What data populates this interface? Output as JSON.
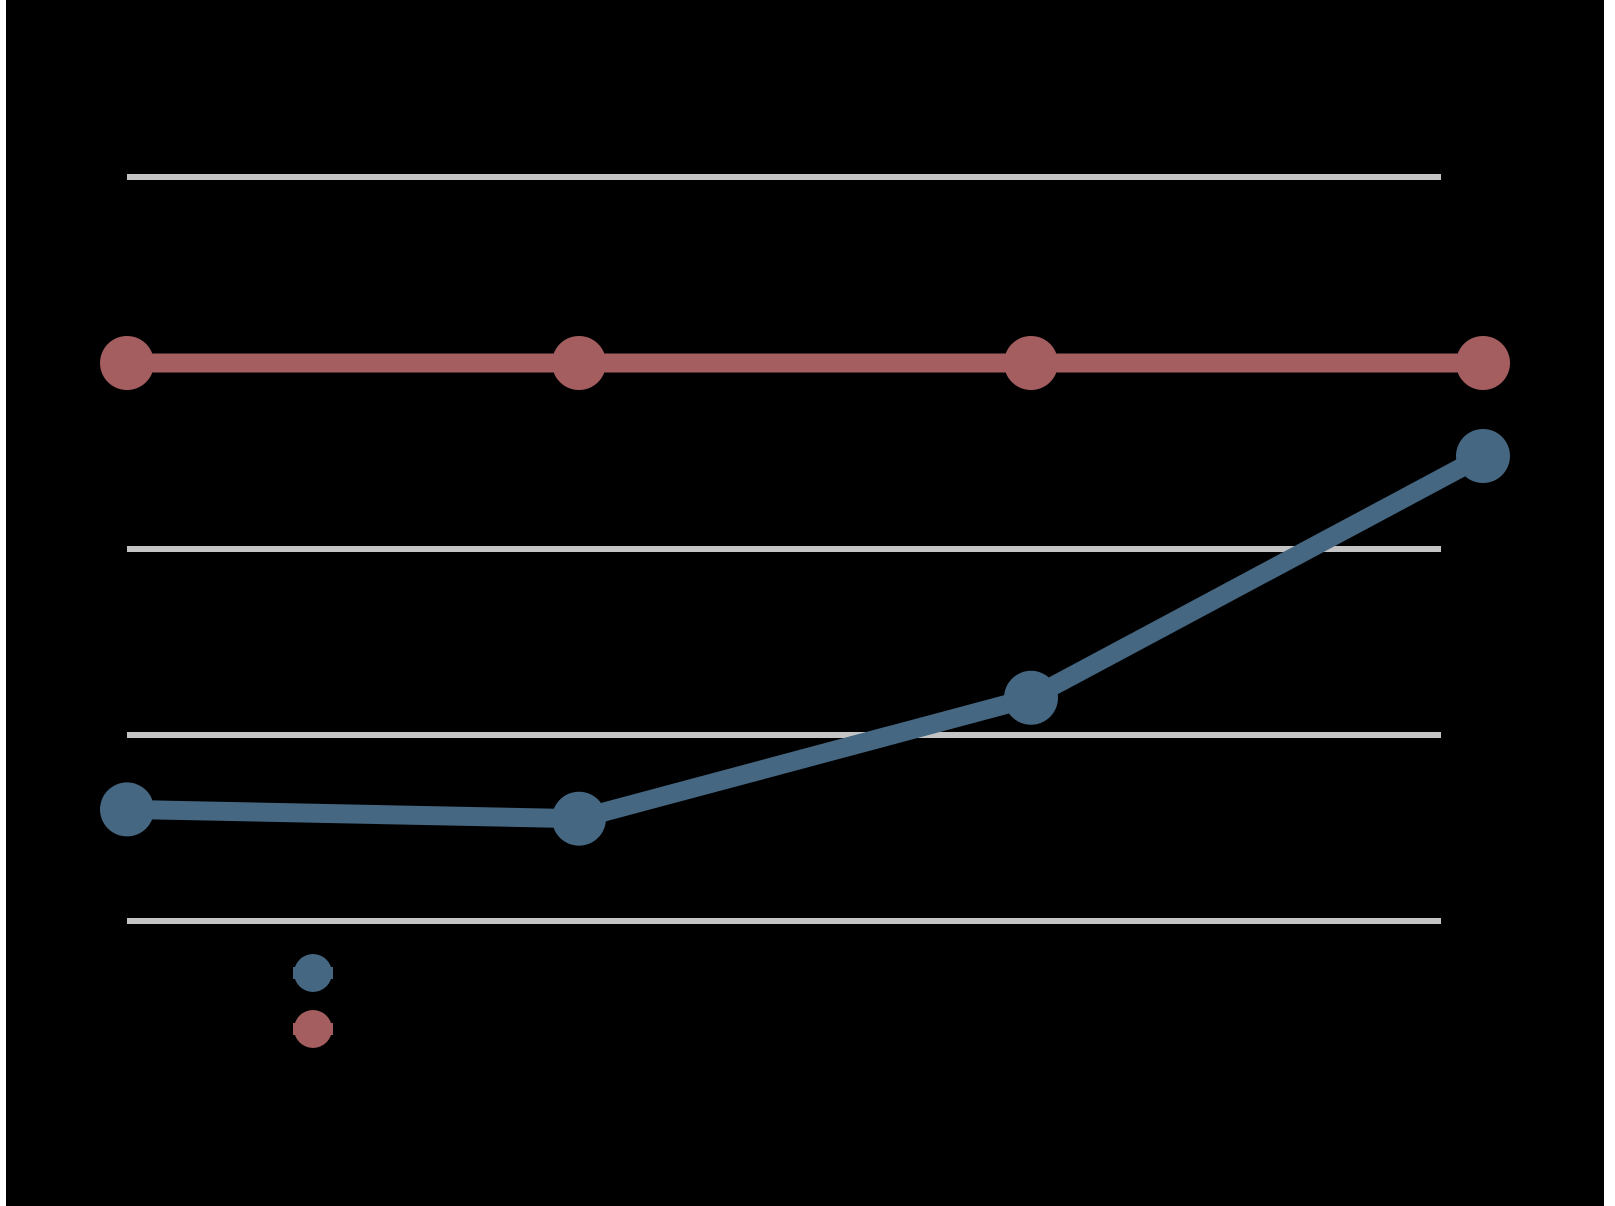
{
  "chart_data": {
    "type": "line",
    "title": "",
    "xlabel": "",
    "ylabel": "",
    "categories": [
      "",
      "",
      "",
      ""
    ],
    "ylim": [
      0,
      40
    ],
    "gridlines": [
      0,
      10,
      20,
      40
    ],
    "grid": true,
    "legend_position": "bottom-left",
    "series": [
      {
        "values": [
          6,
          5.5,
          12,
          25
        ],
        "color": "#456782"
      },
      {
        "values": [
          30,
          30,
          30,
          30
        ],
        "color": "#a45e60"
      }
    ]
  },
  "colors": {
    "background": "#000000",
    "gridline": "#c4c4c4"
  }
}
